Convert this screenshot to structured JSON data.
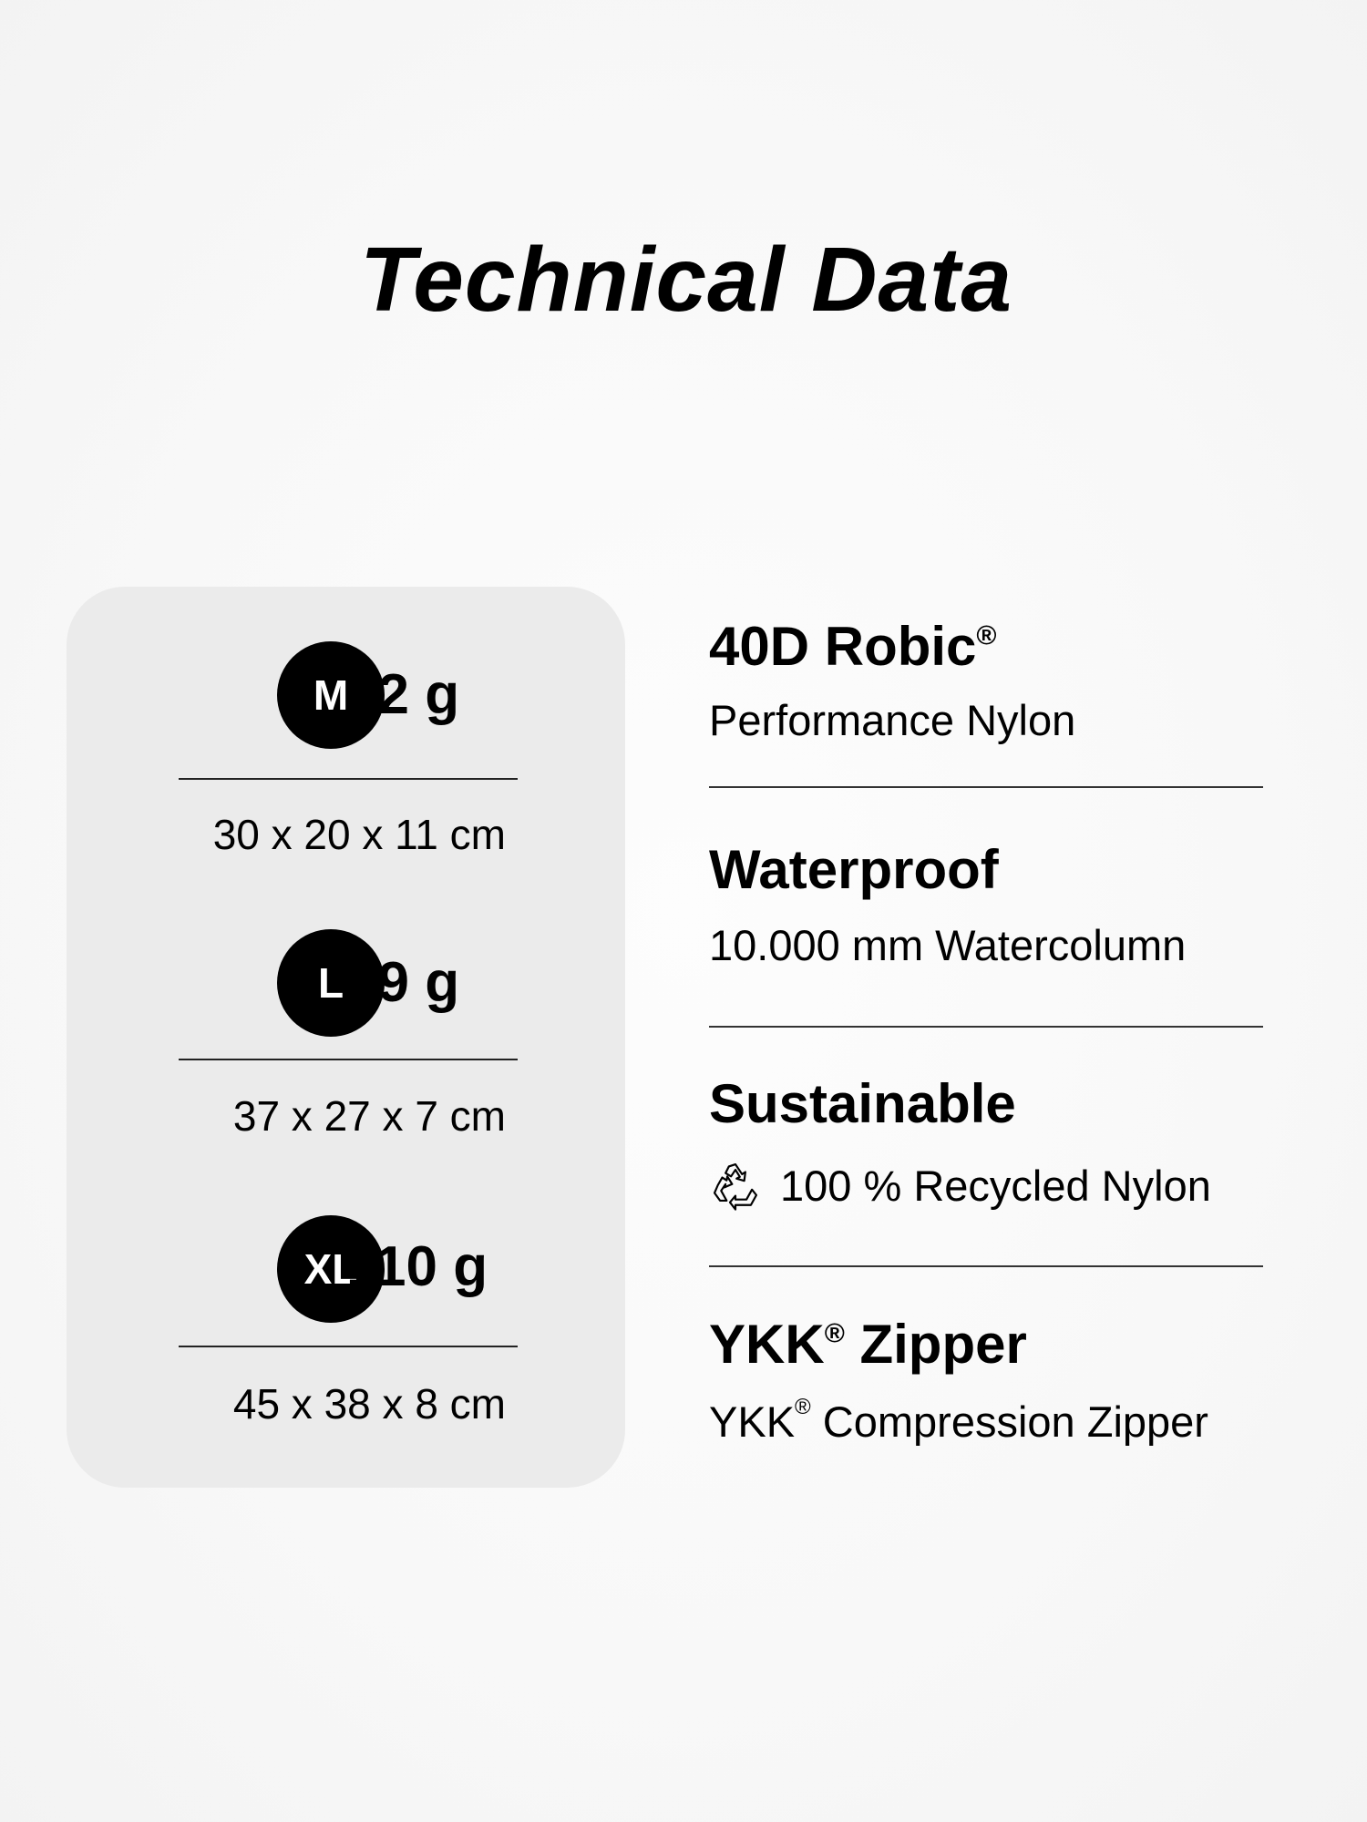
{
  "title": "Technical Data",
  "sizes": [
    {
      "size": "M",
      "weight": "72 g",
      "dimensions": "30 x 20 x 11 cm"
    },
    {
      "size": "L",
      "weight": "89 g",
      "dimensions": "37 x 27 x 7 cm"
    },
    {
      "size": "XL",
      "weight": "110 g",
      "dimensions": "45 x 38 x 8 cm"
    }
  ],
  "features": [
    {
      "title": "40D Robic",
      "title_mark": "®",
      "subtitle": "Performance Nylon"
    },
    {
      "title": "Waterproof",
      "subtitle": "10.000 mm Watercolumn"
    },
    {
      "title": "Sustainable",
      "subtitle": "100 % Recycled Nylon",
      "icon": "recycle-icon"
    },
    {
      "title": "YKK",
      "title_mark": "®",
      "title_rest": " Zipper",
      "subtitle_pre": "YKK",
      "subtitle_mark": "®",
      "subtitle": " Compression Zipper"
    }
  ]
}
